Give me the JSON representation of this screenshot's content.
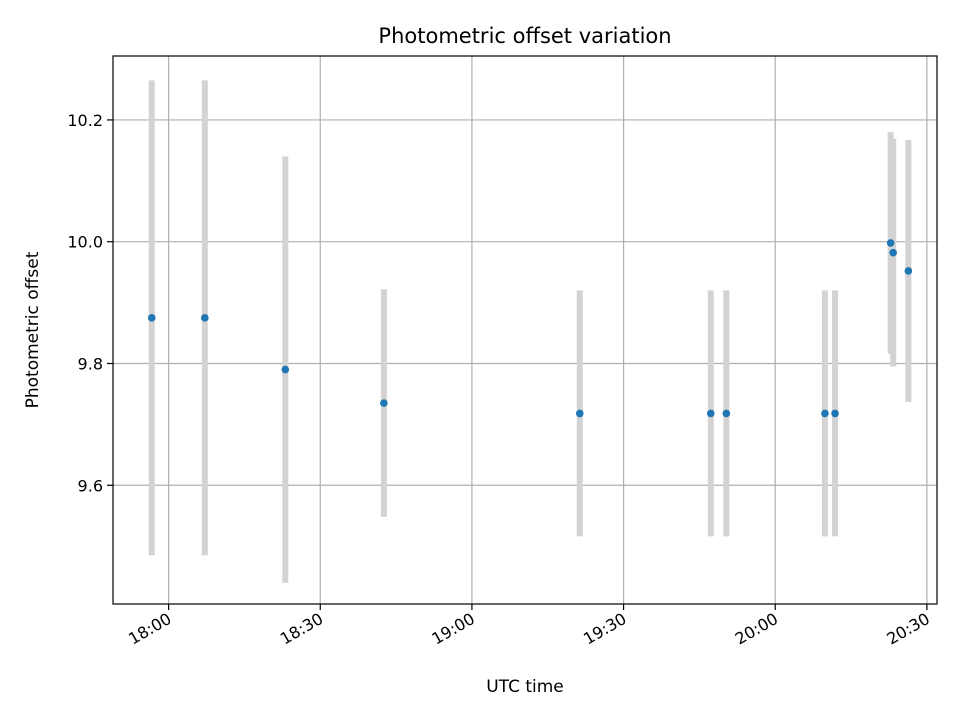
{
  "chart_data": {
    "type": "scatter",
    "title": "Photometric offset variation",
    "xlabel": "UTC time",
    "ylabel": "Photometric offset",
    "xlim": [
      "17:49",
      "20:32"
    ],
    "ylim": [
      9.405,
      10.305
    ],
    "x_ticks": [
      "18:00",
      "18:30",
      "19:00",
      "19:30",
      "20:00",
      "20:30"
    ],
    "y_ticks": [
      9.6,
      9.8,
      10.0,
      10.2
    ],
    "grid": true,
    "legend": "none",
    "colors": {
      "points": "#1f77b4",
      "errorbars": "#d3d3d3"
    },
    "points": [
      {
        "x": "17:56:40",
        "y": 9.875,
        "err": 0.39
      },
      {
        "x": "18:07:10",
        "y": 9.875,
        "err": 0.39
      },
      {
        "x": "18:23:05",
        "y": 9.79,
        "err": 0.35
      },
      {
        "x": "18:42:35",
        "y": 9.735,
        "err": 0.187
      },
      {
        "x": "19:21:20",
        "y": 9.718,
        "err": 0.202
      },
      {
        "x": "19:47:15",
        "y": 9.718,
        "err": 0.202
      },
      {
        "x": "19:50:20",
        "y": 9.718,
        "err": 0.202
      },
      {
        "x": "20:09:50",
        "y": 9.718,
        "err": 0.202
      },
      {
        "x": "20:11:50",
        "y": 9.718,
        "err": 0.202
      },
      {
        "x": "20:22:50",
        "y": 9.998,
        "err": 0.182
      },
      {
        "x": "20:23:20",
        "y": 9.982,
        "err": 0.187
      },
      {
        "x": "20:26:20",
        "y": 9.952,
        "err": 0.215
      }
    ]
  }
}
